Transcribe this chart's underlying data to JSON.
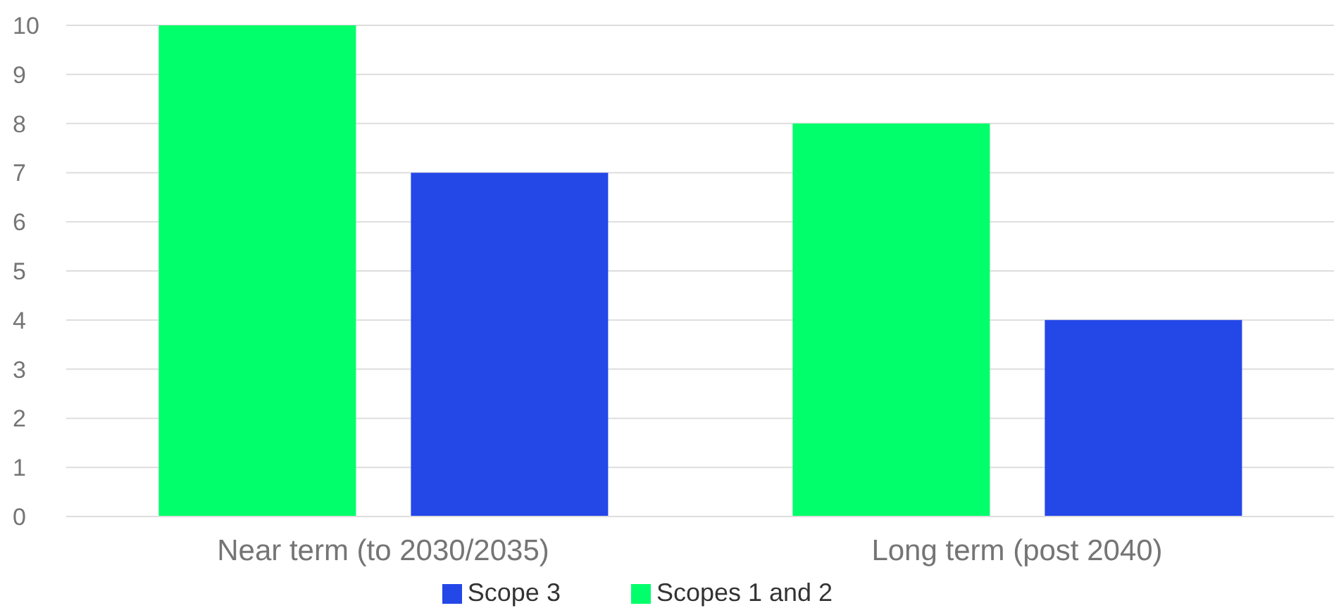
{
  "chart_data": {
    "type": "bar",
    "categories": [
      "Near term (to 2030/2035)",
      "Long term (post 2040)"
    ],
    "series": [
      {
        "name": "Scopes 1 and 2",
        "color": "#00ff6a",
        "values": [
          10,
          8
        ]
      },
      {
        "name": "Scope 3",
        "color": "#2447e8",
        "values": [
          7,
          4
        ]
      }
    ],
    "ylim": [
      0,
      10
    ],
    "yticks": [
      0,
      1,
      2,
      3,
      4,
      5,
      6,
      7,
      8,
      9,
      10
    ],
    "grid": "y",
    "legend": "bottom"
  }
}
